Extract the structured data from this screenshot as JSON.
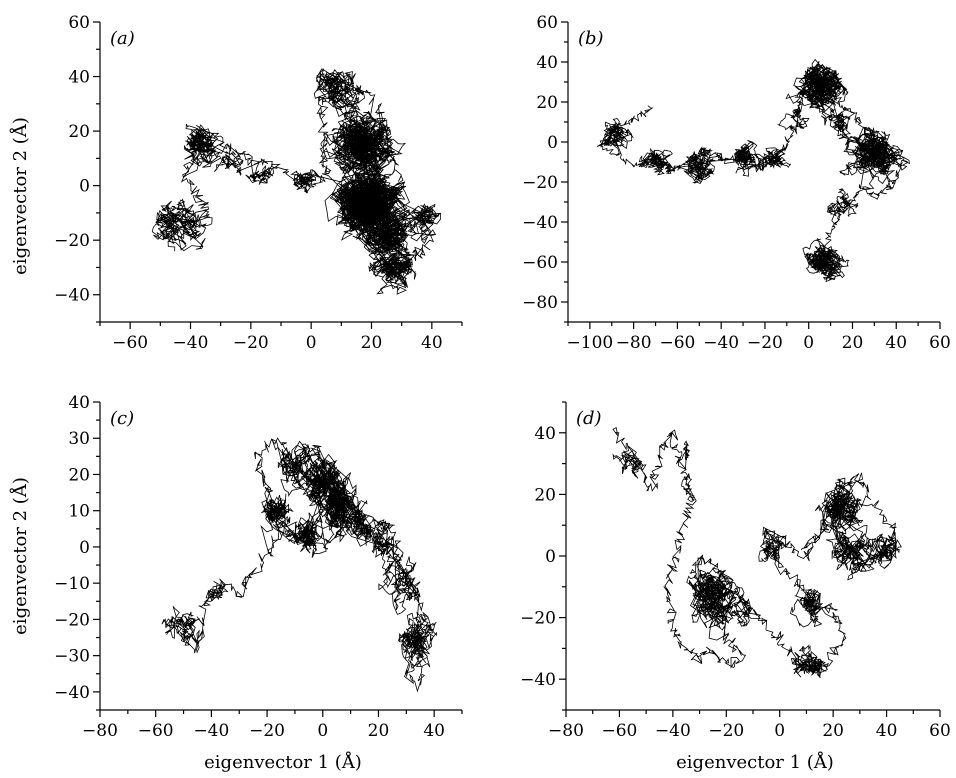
{
  "chart_data": [
    {
      "type": "line",
      "panel": "(a)",
      "xlabel": "",
      "ylabel": "eigenvector 2 (Å)",
      "xlim": [
        -70,
        50
      ],
      "ylim": [
        -50,
        60
      ],
      "xticks": [
        -60,
        -40,
        -20,
        0,
        20,
        40
      ],
      "yticks": [
        -40,
        -20,
        0,
        20,
        40,
        60
      ],
      "series": [
        {
          "clusters": [
            [
              -44,
              -15,
              6
            ],
            [
              -35,
              15,
              6
            ],
            [
              -27,
              7,
              4
            ],
            [
              -16,
              3,
              4
            ],
            [
              -2,
              2,
              4
            ],
            [
              8,
              36,
              6
            ],
            [
              17,
              15,
              8
            ],
            [
              20,
              -6,
              9
            ],
            [
              25,
              -18,
              6
            ],
            [
              27,
              -30,
              6
            ],
            [
              37,
              -12,
              5
            ]
          ],
          "path_x": [
            -46,
            -49,
            -42,
            -38,
            -33,
            -42,
            -38,
            -32,
            -27,
            -19,
            -12,
            -6,
            0,
            5,
            3,
            8,
            12,
            17,
            22,
            26,
            18,
            15,
            13,
            20,
            26,
            30,
            27,
            24,
            18,
            22,
            31,
            36,
            39,
            34,
            28,
            31,
            26,
            20,
            13,
            17,
            24,
            20,
            16,
            22
          ],
          "path_y": [
            -23,
            -10,
            -6,
            -18,
            -12,
            4,
            22,
            19,
            14,
            9,
            7,
            3,
            5,
            2,
            42,
            33,
            24,
            36,
            30,
            15,
            8,
            -2,
            -12,
            -6,
            -4,
            0,
            11,
            22,
            13,
            -9,
            -17,
            -12,
            -21,
            -27,
            -32,
            -36,
            -30,
            -22,
            -14,
            -8,
            -3,
            3,
            10,
            5
          ]
        }
      ]
    },
    {
      "type": "line",
      "panel": "(b)",
      "xlabel": "",
      "ylabel": "",
      "xlim": [
        -110,
        60
      ],
      "ylim": [
        -90,
        60
      ],
      "xticks": [
        -100,
        -80,
        -60,
        -40,
        -20,
        0,
        20,
        40,
        60
      ],
      "yticks": [
        -80,
        -60,
        -40,
        -20,
        0,
        20,
        40,
        60
      ],
      "series": [
        {
          "clusters": [
            [
              -88,
              3,
              6
            ],
            [
              -68,
              -10,
              6
            ],
            [
              -50,
              -12,
              6
            ],
            [
              -30,
              -8,
              6
            ],
            [
              -15,
              -8,
              5
            ],
            [
              -5,
              8,
              5
            ],
            [
              5,
              28,
              9
            ],
            [
              12,
              10,
              6
            ],
            [
              30,
              -5,
              9
            ],
            [
              15,
              -30,
              5
            ],
            [
              8,
              -60,
              6
            ]
          ],
          "path_x": [
            -72,
            -78,
            -88,
            -95,
            -86,
            -78,
            -70,
            -62,
            -54,
            -46,
            -38,
            -30,
            -22,
            -16,
            -10,
            -6,
            -3,
            1,
            4,
            8,
            12,
            20,
            28,
            35,
            42,
            45,
            38,
            30,
            25,
            18,
            12,
            8,
            3,
            6,
            10,
            12,
            8,
            4
          ],
          "path_y": [
            17,
            12,
            8,
            -2,
            -8,
            -12,
            -9,
            -14,
            -10,
            -4,
            -9,
            -7,
            -14,
            -9,
            -2,
            12,
            24,
            36,
            40,
            30,
            20,
            14,
            4,
            -4,
            -13,
            -9,
            -22,
            -28,
            -22,
            -30,
            -40,
            -52,
            -55,
            -62,
            -70,
            -65,
            -58,
            -48
          ]
        }
      ]
    },
    {
      "type": "line",
      "panel": "(c)",
      "xlabel": "eigenvector 1 (Å)",
      "ylabel": "eigenvector 2 (Å)",
      "xlim": [
        -80,
        50
      ],
      "ylim": [
        -45,
        40
      ],
      "xticks": [
        -80,
        -60,
        -40,
        -20,
        0,
        20,
        40
      ],
      "yticks": [
        -40,
        -30,
        -20,
        -10,
        0,
        10,
        20,
        30,
        40
      ],
      "series": [
        {
          "clusters": [
            [
              -50,
              -22,
              5
            ],
            [
              -38,
              -14,
              3
            ],
            [
              -18,
              10,
              5
            ],
            [
              -10,
              22,
              5
            ],
            [
              0,
              18,
              6
            ],
            [
              5,
              12,
              6
            ],
            [
              -6,
              3,
              4
            ],
            [
              13,
              6,
              5
            ],
            [
              22,
              0,
              5
            ],
            [
              28,
              -10,
              5
            ],
            [
              33,
              -25,
              5
            ]
          ],
          "path_x": [
            -56,
            -52,
            -46,
            -42,
            -36,
            -30,
            -24,
            -18,
            -14,
            -20,
            -24,
            -17,
            -11,
            -6,
            0,
            4,
            8,
            2,
            -4,
            -10,
            -14,
            -6,
            2,
            10,
            16,
            22,
            27,
            30,
            34,
            36,
            40,
            35,
            30,
            34,
            37
          ],
          "path_y": [
            -24,
            -20,
            -29,
            -14,
            -10,
            -13,
            -6,
            0,
            6,
            16,
            26,
            29,
            24,
            28,
            24,
            20,
            14,
            12,
            4,
            1,
            6,
            4,
            0,
            8,
            4,
            0,
            -4,
            -8,
            -14,
            -20,
            -24,
            -30,
            -35,
            -38,
            -32
          ]
        }
      ]
    },
    {
      "type": "line",
      "panel": "(d)",
      "xlabel": "eigenvector 1 (Å)",
      "ylabel": "",
      "xlim": [
        -80,
        60
      ],
      "ylim": [
        -50,
        50
      ],
      "xticks": [
        -80,
        -60,
        -40,
        -20,
        0,
        20,
        40,
        60
      ],
      "yticks": [
        -40,
        -20,
        0,
        20,
        40
      ],
      "series": [
        {
          "clusters": [
            [
              -57,
              30,
              4
            ],
            [
              -36,
              34,
              3
            ],
            [
              -34,
              24,
              3
            ],
            [
              -25,
              -14,
              7
            ],
            [
              -15,
              -18,
              4
            ],
            [
              -2,
              2,
              4
            ],
            [
              12,
              -17,
              5
            ],
            [
              22,
              16,
              6
            ],
            [
              27,
              0,
              6
            ],
            [
              40,
              2,
              5
            ],
            [
              10,
              -35,
              5
            ]
          ],
          "path_x": [
            -62,
            -58,
            -52,
            -48,
            -44,
            -40,
            -37,
            -33,
            -38,
            -42,
            -40,
            -36,
            -30,
            -26,
            -22,
            -18,
            -14,
            -20,
            -28,
            -34,
            -30,
            -24,
            -16,
            -8,
            0,
            8,
            14,
            18,
            24,
            20,
            14,
            6,
            0,
            -6,
            2,
            10,
            18,
            24,
            30,
            34,
            38,
            44,
            40,
            32,
            26,
            20,
            14,
            8
          ],
          "path_y": [
            41,
            34,
            28,
            22,
            36,
            40,
            30,
            18,
            4,
            -10,
            -22,
            -30,
            -34,
            -30,
            -34,
            -36,
            -32,
            -26,
            -16,
            -8,
            0,
            -4,
            -12,
            -20,
            -26,
            -36,
            -38,
            -34,
            -26,
            -18,
            -14,
            -8,
            -4,
            8,
            4,
            0,
            12,
            22,
            26,
            18,
            14,
            8,
            2,
            -4,
            2,
            10,
            6,
            2
          ]
        }
      ]
    }
  ]
}
